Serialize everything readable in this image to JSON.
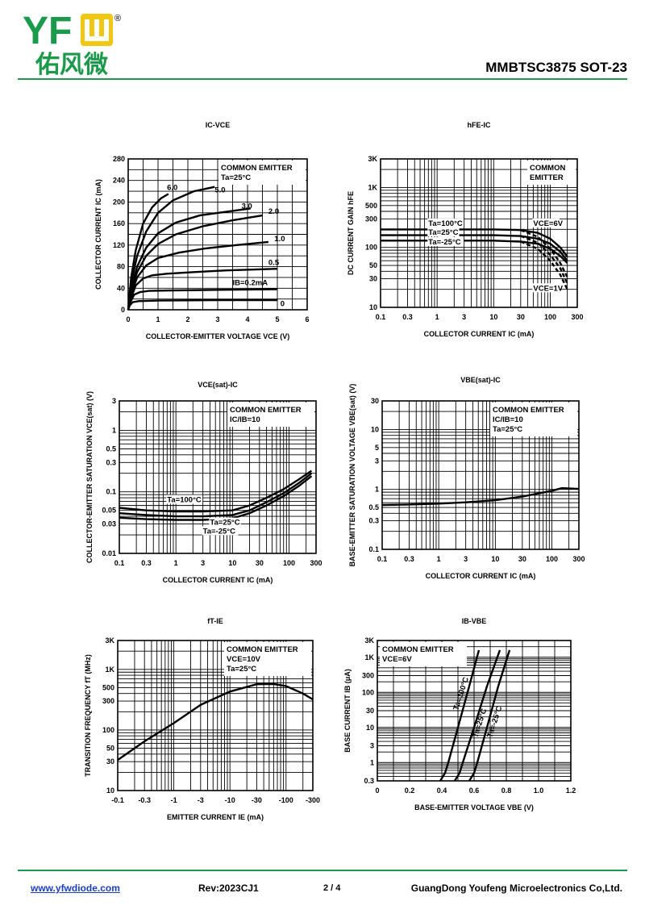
{
  "header": {
    "logo_text": "YFW",
    "logo_registered": "®",
    "logo_cn": "佑风微",
    "part_number": "MMBTSC3875 SOT-23"
  },
  "footer": {
    "url": "www.yfwdiode.com",
    "rev": "Rev:2023CJ1",
    "page": "2 / 4",
    "company": "GuangDong Youfeng Microelectronics Co,Ltd."
  },
  "colors": {
    "brand_yellow": "#f0c814",
    "brand_green": "#1a9a4a",
    "link": "#1a3fbf"
  },
  "chart_data": [
    {
      "id": "ic_vce",
      "type": "line",
      "title": "IC-VCE",
      "xlabel": "COLLECTOR-EMITTER  VOLTAGE  VCE (V)",
      "ylabel": "COLLECTOR CURRENT  IC (mA)",
      "xscale": "linear",
      "yscale": "linear",
      "xlim": [
        0,
        6
      ],
      "ylim": [
        0,
        280
      ],
      "xticks": [
        0,
        1,
        2,
        3,
        4,
        5,
        6
      ],
      "xtick_labels": [
        "0",
        "1",
        "2",
        "3",
        "4",
        "5",
        "6"
      ],
      "yticks": [
        0,
        40,
        80,
        120,
        160,
        200,
        240,
        280
      ],
      "ytick_labels": [
        "0",
        "40",
        "80",
        "120",
        "160",
        "200",
        "240",
        "280"
      ],
      "grid": true,
      "legend_box": {
        "lines": [
          "COMMON EMITTER",
          "Ta=25°C"
        ],
        "corner": "top-right"
      },
      "series": [
        {
          "label": "6.0",
          "x": [
            0,
            0.1,
            0.25,
            0.5,
            0.8,
            1.1,
            1.35
          ],
          "y": [
            0,
            60,
            110,
            160,
            190,
            207,
            215
          ]
        },
        {
          "label": "5.0",
          "x": [
            0,
            0.1,
            0.3,
            0.6,
            1.0,
            1.5,
            2.2,
            2.9
          ],
          "y": [
            0,
            50,
            100,
            145,
            180,
            203,
            220,
            228
          ]
        },
        {
          "label": "3.0",
          "x": [
            0,
            0.1,
            0.3,
            0.6,
            1.0,
            1.6,
            2.4,
            3.3,
            4.1
          ],
          "y": [
            0,
            40,
            80,
            115,
            142,
            162,
            175,
            182,
            188
          ]
        },
        {
          "label": "2.0",
          "x": [
            0,
            0.1,
            0.3,
            0.6,
            1.0,
            1.6,
            2.5,
            3.5,
            4.5
          ],
          "y": [
            0,
            35,
            70,
            100,
            122,
            140,
            155,
            166,
            175
          ]
        },
        {
          "label": "1.0",
          "x": [
            0,
            0.1,
            0.3,
            0.6,
            1.0,
            1.7,
            2.6,
            3.6,
            4.7
          ],
          "y": [
            0,
            30,
            60,
            82,
            96,
            106,
            114,
            120,
            126
          ]
        },
        {
          "label": "0.5",
          "x": [
            0,
            0.1,
            0.25,
            0.5,
            0.8,
            1.3,
            2.2,
            3.3,
            5.0
          ],
          "y": [
            0,
            22,
            45,
            58,
            64,
            67,
            70,
            73,
            76
          ]
        },
        {
          "label": "IB=0.2mA",
          "x": [
            0,
            0.08,
            0.2,
            0.4,
            0.7,
            1.5,
            3.0,
            5.0
          ],
          "y": [
            0,
            15,
            28,
            33,
            35,
            36,
            37,
            38
          ]
        },
        {
          "label": "",
          "x": [
            0,
            0.05,
            0.15,
            0.35,
            1.0,
            3.0,
            5.0
          ],
          "y": [
            0,
            8,
            14,
            16,
            17,
            18,
            18
          ]
        }
      ],
      "curve_labels": [
        {
          "text": "6.0",
          "x": 1.3,
          "y": 222
        },
        {
          "text": "5.0",
          "x": 2.9,
          "y": 218
        },
        {
          "text": "3.0",
          "x": 3.8,
          "y": 188
        },
        {
          "text": "2.0",
          "x": 4.7,
          "y": 178
        },
        {
          "text": "1.0",
          "x": 4.9,
          "y": 127
        },
        {
          "text": "0.5",
          "x": 4.7,
          "y": 83
        },
        {
          "text": "IB=0.2mA",
          "x": 3.5,
          "y": 46
        },
        {
          "text": "0",
          "x": 5.1,
          "y": 7
        }
      ]
    },
    {
      "id": "hfe_ic",
      "type": "line",
      "title": "hFE-IC",
      "xlabel": "COLLECTOR CURRENT  IC (mA)",
      "ylabel": "DC CURRENT GAIN  hFE",
      "xscale": "log",
      "yscale": "log",
      "xlim": [
        0.1,
        300
      ],
      "ylim": [
        10,
        3000
      ],
      "xticks": [
        0.1,
        0.3,
        1,
        3,
        10,
        30,
        100,
        300
      ],
      "xtick_labels": [
        "0.1",
        "0.3",
        "1",
        "3",
        "10",
        "30",
        "100",
        "300"
      ],
      "yticks": [
        10,
        30,
        50,
        100,
        300,
        500,
        1000,
        3000
      ],
      "ytick_labels": [
        "10",
        "30",
        "50",
        "100",
        "300",
        "500",
        "1K",
        "3K"
      ],
      "grid": true,
      "legend_box": {
        "lines": [
          "COMMON",
          "EMITTER"
        ],
        "corner": "top-right"
      },
      "series": [
        {
          "label": "Ta=100°C",
          "style": "solid",
          "x": [
            0.1,
            10,
            30,
            60,
            100,
            150,
            200
          ],
          "y": [
            200,
            200,
            195,
            175,
            140,
            100,
            70
          ]
        },
        {
          "label": "Ta=25°C",
          "style": "solid",
          "x": [
            0.1,
            10,
            30,
            60,
            100,
            150,
            200
          ],
          "y": [
            160,
            160,
            155,
            140,
            115,
            85,
            60
          ]
        },
        {
          "label": "Ta=-25°C",
          "style": "solid",
          "x": [
            0.1,
            10,
            30,
            60,
            100,
            150,
            200
          ],
          "y": [
            130,
            130,
            125,
            115,
            95,
            72,
            55
          ]
        },
        {
          "label": "",
          "style": "dashed",
          "x": [
            30,
            60,
            100,
            150,
            200
          ],
          "y": [
            195,
            150,
            95,
            55,
            32
          ]
        },
        {
          "label": "",
          "style": "dashed",
          "x": [
            30,
            60,
            100,
            150,
            200
          ],
          "y": [
            155,
            120,
            75,
            45,
            25
          ]
        },
        {
          "label": "",
          "style": "dashed",
          "x": [
            30,
            60,
            100,
            150,
            200
          ],
          "y": [
            125,
            95,
            60,
            35,
            20
          ]
        }
      ],
      "curve_labels": [
        {
          "text": "Ta=100°C",
          "x": 0.7,
          "y": 230
        },
        {
          "text": "Ta=25°C",
          "x": 0.7,
          "y": 163
        },
        {
          "text": "Ta=-25°C",
          "x": 0.7,
          "y": 112
        },
        {
          "text": "VCE=6V",
          "x": 50,
          "y": 230
        },
        {
          "text": "VCE=1V",
          "x": 50,
          "y": 19
        }
      ]
    },
    {
      "id": "vcesat_ic",
      "type": "line",
      "title": "VCE(sat)-IC",
      "xlabel": "COLLECTOR  CURRENT  IC (mA)",
      "ylabel": "COLLECTOR-EMITTER  SATURATION VCE(sat)  (V)",
      "xscale": "log",
      "yscale": "log",
      "xlim": [
        0.1,
        300
      ],
      "ylim": [
        0.01,
        3
      ],
      "xticks": [
        0.1,
        0.3,
        1,
        3,
        10,
        30,
        100,
        300
      ],
      "xtick_labels": [
        "0.1",
        "0.3",
        "1",
        "3",
        "10",
        "30",
        "100",
        "300"
      ],
      "yticks": [
        0.01,
        0.03,
        0.05,
        0.1,
        0.3,
        0.5,
        1,
        3
      ],
      "ytick_labels": [
        "0.01",
        "0.03",
        "0.05",
        "0.1",
        "0.3",
        "0.5",
        "1",
        "3"
      ],
      "grid": true,
      "legend_box": {
        "lines": [
          "COMMON EMITTER",
          "IC/IB=10"
        ],
        "corner": "top-right"
      },
      "series": [
        {
          "label": "Ta=100°C",
          "x": [
            0.1,
            0.3,
            1,
            3,
            10,
            20,
            40,
            80,
            150,
            250
          ],
          "y": [
            0.055,
            0.05,
            0.048,
            0.048,
            0.05,
            0.06,
            0.08,
            0.11,
            0.16,
            0.22
          ]
        },
        {
          "label": "Ta=25°C",
          "x": [
            0.1,
            0.3,
            1,
            3,
            10,
            20,
            40,
            80,
            150,
            250
          ],
          "y": [
            0.045,
            0.042,
            0.04,
            0.04,
            0.042,
            0.05,
            0.068,
            0.095,
            0.14,
            0.2
          ]
        },
        {
          "label": "Ta=-25°C",
          "x": [
            0.1,
            0.3,
            1,
            3,
            10,
            20,
            40,
            80,
            150,
            250
          ],
          "y": [
            0.038,
            0.036,
            0.035,
            0.035,
            0.037,
            0.045,
            0.06,
            0.085,
            0.125,
            0.18
          ]
        }
      ],
      "curve_labels": [
        {
          "text": "Ta=100°C",
          "x": 0.7,
          "y": 0.068
        },
        {
          "text": "Ta=25°C",
          "x": 4,
          "y": 0.029
        },
        {
          "text": "Ta=-25°C",
          "x": 3,
          "y": 0.021
        }
      ]
    },
    {
      "id": "vbesat_ic",
      "type": "line",
      "title": "VBE(sat)-IC",
      "xlabel": "COLLECTOR  CURRENT  IC (mA)",
      "ylabel": "BASE-EMITTER  SATURATION VOLTAGE  VBE(sat)  (V)",
      "xscale": "log",
      "yscale": "log",
      "xlim": [
        0.1,
        300
      ],
      "ylim": [
        0.1,
        30
      ],
      "xticks": [
        0.1,
        0.3,
        1,
        3,
        10,
        30,
        100,
        300
      ],
      "xtick_labels": [
        "0.1",
        "0.3",
        "1",
        "3",
        "10",
        "30",
        "100",
        "300"
      ],
      "yticks": [
        0.1,
        0.3,
        0.5,
        1,
        3,
        5,
        10,
        30
      ],
      "ytick_labels": [
        "0.1",
        "0.3",
        "0.5",
        "1",
        "3",
        "5",
        "10",
        "30"
      ],
      "grid": true,
      "legend_box": {
        "lines": [
          "COMMON EMITTER",
          "IC/IB=10",
          "Ta=25°C"
        ],
        "corner": "top-right"
      },
      "series": [
        {
          "label": "",
          "x": [
            0.1,
            0.3,
            1,
            3,
            10,
            30,
            100,
            150,
            300
          ],
          "y": [
            0.55,
            0.56,
            0.58,
            0.61,
            0.66,
            0.76,
            0.95,
            1.05,
            1.02
          ]
        }
      ]
    },
    {
      "id": "ft_ie",
      "type": "line",
      "title": "fT-IE",
      "xlabel": "EMITTER CURRENT  IE (mA)",
      "ylabel": "TRANSITION  FREQUENCY  fT (MHz)",
      "xscale": "log",
      "yscale": "log",
      "xlim": [
        0.1,
        300
      ],
      "ylim": [
        10,
        3000
      ],
      "xticks": [
        0.1,
        0.3,
        1,
        3,
        10,
        30,
        100,
        300
      ],
      "xtick_labels": [
        "-0.1",
        "-0.3",
        "-1",
        "-3",
        "-10",
        "-30",
        "-100",
        "-300"
      ],
      "yticks": [
        10,
        30,
        50,
        100,
        300,
        500,
        1000,
        3000
      ],
      "ytick_labels": [
        "10",
        "30",
        "50",
        "100",
        "300",
        "500",
        "1K",
        "3K"
      ],
      "grid": true,
      "legend_box": {
        "lines": [
          "COMMON EMITTER",
          "VCE=10V",
          "Ta=25°C"
        ],
        "corner": "top-right"
      },
      "series": [
        {
          "label": "",
          "x": [
            0.1,
            0.3,
            1,
            3,
            10,
            30,
            60,
            100,
            200,
            300
          ],
          "y": [
            32,
            65,
            130,
            260,
            430,
            570,
            575,
            530,
            400,
            320
          ]
        }
      ]
    },
    {
      "id": "ib_vbe",
      "type": "line",
      "title": "IB-VBE",
      "xlabel": "BASE-EMITTER  VOLTAGE  VBE (V)",
      "ylabel": "BASE CURRENT  IB (μA)",
      "xscale": "linear",
      "yscale": "log",
      "xlim": [
        0,
        1.2
      ],
      "ylim": [
        0.3,
        3000
      ],
      "xticks": [
        0,
        0.2,
        0.4,
        0.6,
        0.8,
        1.0,
        1.2
      ],
      "xtick_labels": [
        "0",
        "0.2",
        "0.4",
        "0.6",
        "0.8",
        "1.0",
        "1.2"
      ],
      "yticks": [
        0.3,
        1,
        3,
        10,
        30,
        100,
        300,
        1000,
        3000
      ],
      "ytick_labels": [
        "0.3",
        "1",
        "3",
        "10",
        "30",
        "100",
        "300",
        "1K",
        "3K"
      ],
      "grid": true,
      "legend_box": {
        "lines": [
          "COMMON EMITTER",
          "VCE=6V"
        ],
        "corner": "top-left"
      },
      "series": [
        {
          "label": "Ta=100°C",
          "x": [
            0.39,
            0.42,
            0.44,
            0.5,
            0.57,
            0.63
          ],
          "y": [
            0.3,
            0.5,
            1,
            10,
            150,
            1600
          ]
        },
        {
          "label": "Ta=25°C",
          "x": [
            0.48,
            0.51,
            0.53,
            0.6,
            0.68,
            0.76
          ],
          "y": [
            0.3,
            0.5,
            1,
            10,
            150,
            1600
          ]
        },
        {
          "label": "Ta=-25°C",
          "x": [
            0.57,
            0.6,
            0.62,
            0.68,
            0.75,
            0.82
          ],
          "y": [
            0.3,
            0.5,
            1,
            10,
            150,
            1600
          ]
        }
      ],
      "curve_labels": [
        {
          "text": "Ta=100°C",
          "x": 0.5,
          "y": 30
        },
        {
          "text": "Ta=25°C",
          "x": 0.62,
          "y": 5
        },
        {
          "text": "Ta=-25°C",
          "x": 0.71,
          "y": 5
        }
      ]
    }
  ]
}
